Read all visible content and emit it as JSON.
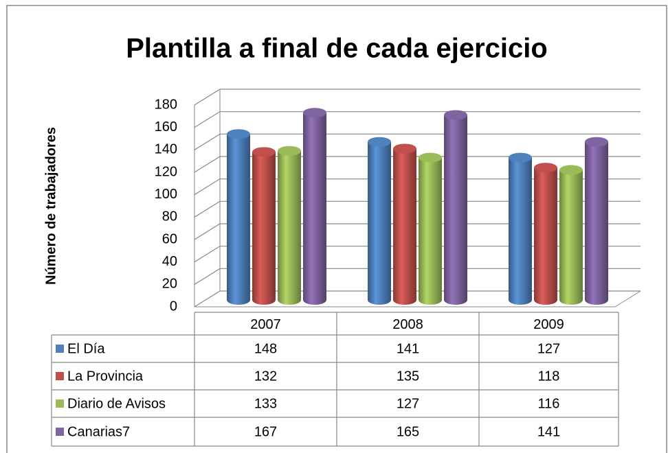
{
  "chart_data": {
    "type": "bar3d",
    "title": "Plantilla a final de cada ejercicio",
    "y_label": "Número de trabajadores",
    "categories": [
      "2007",
      "2008",
      "2009"
    ],
    "series": [
      {
        "name": "El Día",
        "color": "#4f81bd",
        "values": [
          148,
          141,
          127
        ]
      },
      {
        "name": "La Provincia",
        "color": "#c0504d",
        "values": [
          132,
          135,
          118
        ]
      },
      {
        "name": "Diario de Avisos",
        "color": "#9bbb59",
        "values": [
          133,
          127,
          116
        ]
      },
      {
        "name": "Canarias7",
        "color": "#8064a2",
        "values": [
          167,
          165,
          141
        ]
      }
    ],
    "ylim": [
      0,
      180
    ],
    "yticks": [
      0,
      20,
      40,
      60,
      80,
      100,
      120,
      140,
      160,
      180
    ],
    "grid": true,
    "data_table": true
  }
}
